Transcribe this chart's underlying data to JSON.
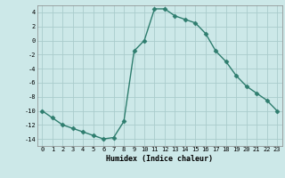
{
  "x": [
    0,
    1,
    2,
    3,
    4,
    5,
    6,
    7,
    8,
    9,
    10,
    11,
    12,
    13,
    14,
    15,
    16,
    17,
    18,
    19,
    20,
    21,
    22,
    23
  ],
  "y": [
    -10,
    -11,
    -12,
    -12.5,
    -13,
    -13.5,
    -14,
    -13.8,
    -11.5,
    -1.5,
    0,
    4.5,
    4.5,
    3.5,
    3,
    2.5,
    1,
    -1.5,
    -3,
    -5,
    -6.5,
    -7.5,
    -8.5,
    -10
  ],
  "xlabel": "Humidex (Indice chaleur)",
  "ylim": [
    -15,
    5
  ],
  "xlim": [
    -0.5,
    23.5
  ],
  "yticks": [
    -14,
    -12,
    -10,
    -8,
    -6,
    -4,
    -2,
    0,
    2,
    4
  ],
  "xticks": [
    0,
    1,
    2,
    3,
    4,
    5,
    6,
    7,
    8,
    9,
    10,
    11,
    12,
    13,
    14,
    15,
    16,
    17,
    18,
    19,
    20,
    21,
    22,
    23
  ],
  "line_color": "#2e7d6e",
  "bg_color": "#cce8e8",
  "grid_color": "#aacccc",
  "marker": "D",
  "marker_size": 2.5,
  "tick_fontsize": 5,
  "xlabel_fontsize": 6,
  "linewidth": 1.0
}
